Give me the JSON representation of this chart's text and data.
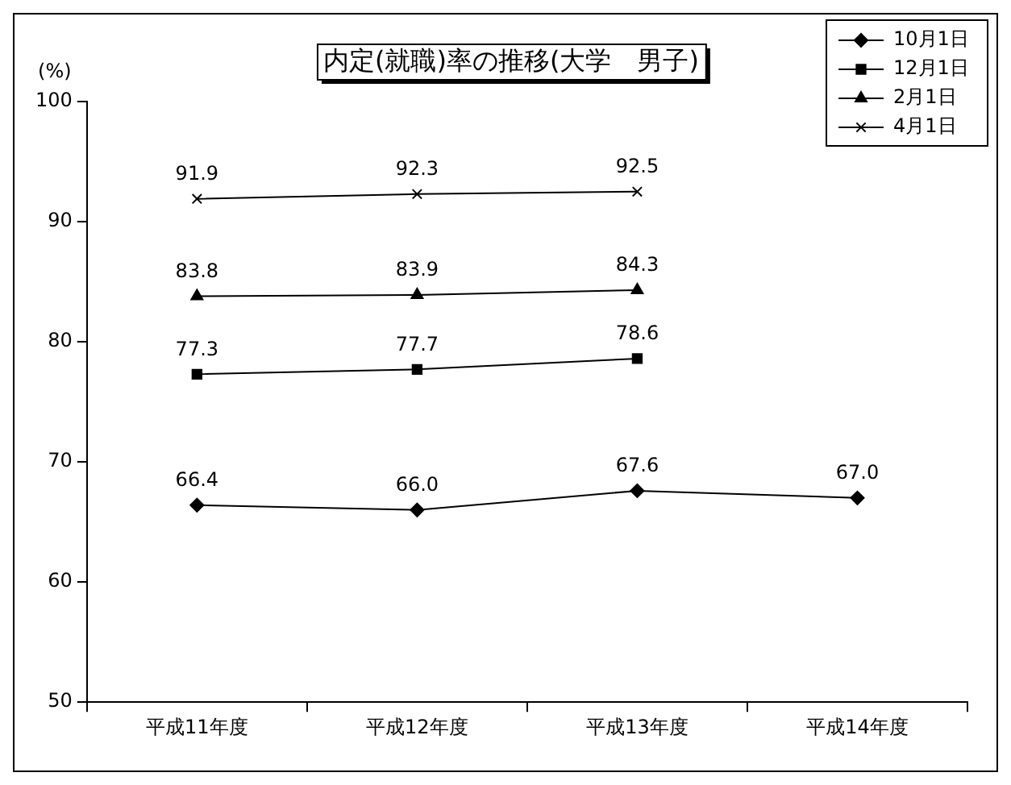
{
  "chart_data": {
    "type": "line",
    "title": "内定(就職)率の推移(大学　男子)",
    "ylabel": "(%)",
    "categories": [
      "平成11年度",
      "平成12年度",
      "平成13年度",
      "平成14年度"
    ],
    "series": [
      {
        "name": "10月1日",
        "color": "#000000",
        "marker": "diamond",
        "values": [
          66.4,
          66.0,
          67.6,
          67.0
        ],
        "value_labels": [
          "66.4",
          "66.0",
          "67.6",
          "67.0"
        ]
      },
      {
        "name": "12月1日",
        "color": "#000000",
        "marker": "square",
        "values": [
          77.3,
          77.7,
          78.6,
          null
        ],
        "value_labels": [
          "77.3",
          "77.7",
          "78.6",
          null
        ]
      },
      {
        "name": "2月1日",
        "color": "#000000",
        "marker": "triangle",
        "values": [
          83.8,
          83.9,
          84.3,
          null
        ],
        "value_labels": [
          "83.8",
          "83.9",
          "84.3",
          null
        ]
      },
      {
        "name": "4月1日",
        "color": "#000000",
        "marker": "cross",
        "values": [
          91.9,
          92.3,
          92.5,
          null
        ],
        "value_labels": [
          "91.9",
          "92.3",
          "92.5",
          null
        ]
      }
    ],
    "ylim": [
      50,
      100
    ],
    "yticks": [
      50,
      60,
      70,
      80,
      90,
      100
    ],
    "grid": false,
    "legend": "top right",
    "line_style": "solid"
  }
}
